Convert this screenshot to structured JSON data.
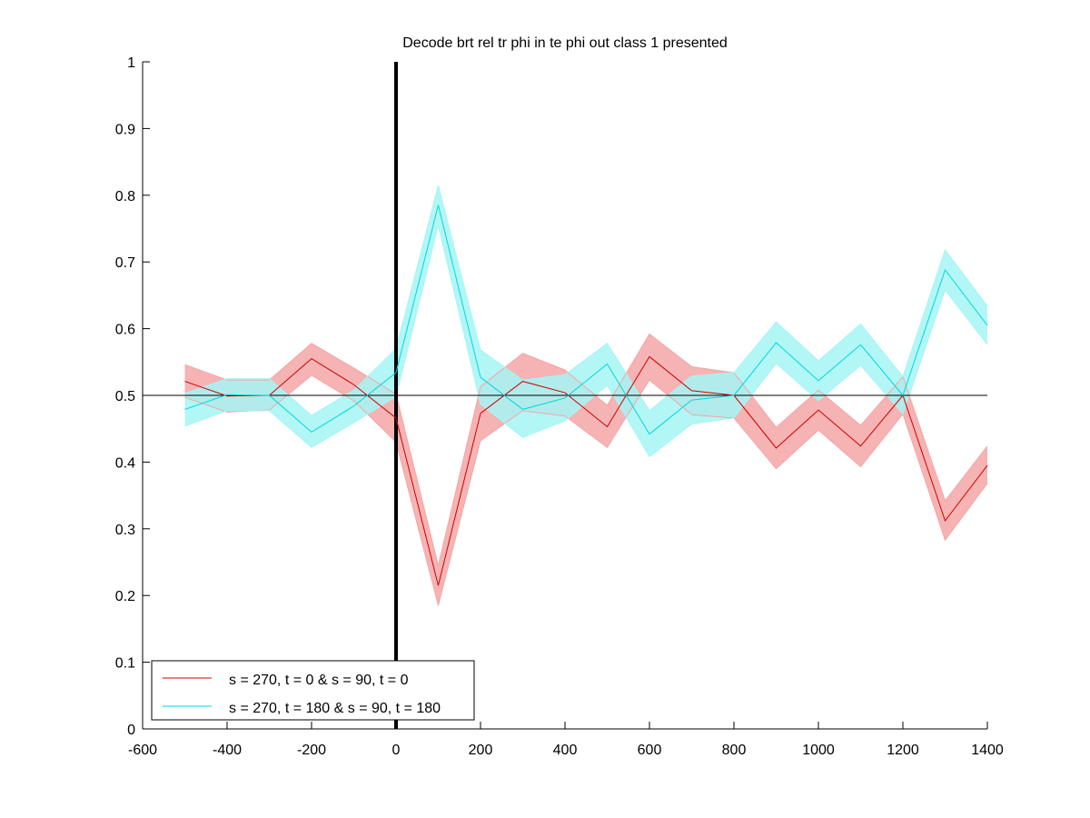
{
  "chart_data": {
    "type": "line",
    "title": "Decode brt rel tr phi in te phi out  class 1 presented",
    "xlabel": "",
    "ylabel": "",
    "xlim": [
      -600,
      1400
    ],
    "ylim": [
      0,
      1
    ],
    "xticks": [
      "-600",
      "-400",
      "-200",
      "0",
      "200",
      "400",
      "600",
      "800",
      "1000",
      "1200",
      "1400"
    ],
    "yticks": [
      "0",
      "0.1",
      "0.2",
      "0.3",
      "0.4",
      "0.5",
      "0.6",
      "0.7",
      "0.8",
      "0.9",
      "1"
    ],
    "x": [
      -500,
      -400,
      -300,
      -200,
      -100,
      0,
      100,
      200,
      300,
      400,
      500,
      600,
      700,
      800,
      900,
      1000,
      1100,
      1200,
      1300,
      1400
    ],
    "series": [
      {
        "name": "s = 270, t = 0 & s = 90, t = 0",
        "color": "#cc0000",
        "band_color": "#f4a6a6",
        "values": [
          0.521,
          0.499,
          0.5,
          0.555,
          0.516,
          0.466,
          0.215,
          0.473,
          0.521,
          0.504,
          0.453,
          0.558,
          0.507,
          0.5,
          0.421,
          0.478,
          0.424,
          0.5,
          0.312,
          0.395
        ],
        "lower": [
          0.497,
          0.475,
          0.478,
          0.53,
          0.492,
          0.43,
          0.185,
          0.432,
          0.477,
          0.469,
          0.422,
          0.523,
          0.471,
          0.466,
          0.39,
          0.448,
          0.393,
          0.472,
          0.283,
          0.368
        ],
        "upper": [
          0.546,
          0.523,
          0.523,
          0.578,
          0.541,
          0.502,
          0.245,
          0.513,
          0.563,
          0.538,
          0.485,
          0.592,
          0.543,
          0.534,
          0.452,
          0.508,
          0.455,
          0.528,
          0.342,
          0.424
        ]
      },
      {
        "name": "s = 270, t = 180 & s = 90, t = 180",
        "color": "#00d8d8",
        "band_color": "#a6f5f5",
        "values": [
          0.479,
          0.501,
          0.5,
          0.445,
          0.484,
          0.534,
          0.785,
          0.527,
          0.479,
          0.496,
          0.547,
          0.442,
          0.493,
          0.5,
          0.579,
          0.522,
          0.576,
          0.5,
          0.688,
          0.605
        ],
        "lower": [
          0.454,
          0.477,
          0.477,
          0.422,
          0.459,
          0.498,
          0.755,
          0.487,
          0.437,
          0.462,
          0.515,
          0.408,
          0.457,
          0.466,
          0.548,
          0.492,
          0.545,
          0.472,
          0.658,
          0.576
        ],
        "upper": [
          0.503,
          0.525,
          0.525,
          0.47,
          0.508,
          0.57,
          0.815,
          0.568,
          0.523,
          0.531,
          0.578,
          0.477,
          0.529,
          0.534,
          0.61,
          0.552,
          0.607,
          0.528,
          0.718,
          0.634
        ]
      }
    ],
    "reference_lines": [
      {
        "type": "horizontal",
        "y": 0.5,
        "color": "#000000"
      },
      {
        "type": "vertical",
        "x": 0,
        "color": "#000000",
        "weight": "bold"
      }
    ],
    "legend_position": "bottom-left",
    "grid": false
  }
}
